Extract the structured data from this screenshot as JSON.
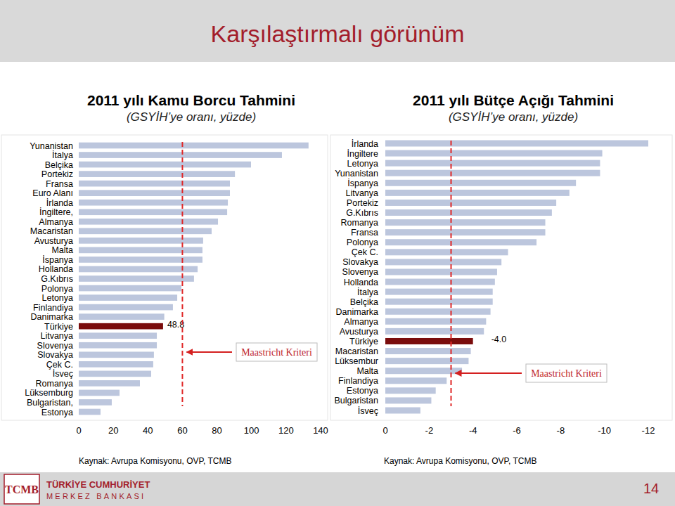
{
  "slide": {
    "title": "Karşılaştırmalı görünüm",
    "logo_text": "TCMB",
    "bank_line1": "TÜRKİYE CUMHURİYET",
    "bank_line2": "MERKEZ BANKASI",
    "page": 14
  },
  "chart_data": [
    {
      "type": "bar",
      "orientation": "horizontal",
      "grid": false,
      "title": "2011 yılı Kamu Borcu Tahmini",
      "subtitle": "(GSYİH’ye oranı, yüzde)",
      "source": "Kaynak: Avrupa Komisyonu, OVP, TCMB",
      "categories": [
        "Yunanistan",
        "İtalya",
        "Belçika",
        "Portekiz",
        "Fransa",
        "Euro Alanı",
        "İrlanda",
        "İngiltere,",
        "Almanya",
        "Macaristan",
        "Avusturya",
        "Malta",
        "İspanya",
        "Hollanda",
        "G.Kıbrıs",
        "Polonya",
        "Letonya",
        "Finlandiya",
        "Danimarka",
        "Türkiye",
        "Litvanya",
        "Slovenya",
        "Slovakya",
        "Çek C.",
        "İsveç",
        "Romanya",
        "Lüksemburg",
        "Bulgaristan,",
        "Estonya"
      ],
      "values": [
        133,
        117.6,
        99.7,
        90.4,
        87.5,
        87.5,
        86.3,
        85.9,
        80.6,
        76.9,
        72,
        71.6,
        71.6,
        68.8,
        66.7,
        59.4,
        57,
        54.5,
        49.5,
        48.8,
        45.2,
        45.2,
        43.5,
        43.1,
        41.9,
        35.4,
        23.6,
        19.1,
        12.6
      ],
      "value_labels": [
        null,
        null,
        null,
        null,
        null,
        null,
        null,
        null,
        null,
        null,
        null,
        null,
        null,
        null,
        null,
        null,
        null,
        null,
        null,
        "48.8",
        null,
        null,
        null,
        null,
        null,
        null,
        null,
        null,
        null
      ],
      "colors": [
        "#bcc6dd",
        "#bcc6dd",
        "#bcc6dd",
        "#bcc6dd",
        "#bcc6dd",
        "#bcc6dd",
        "#bcc6dd",
        "#bcc6dd",
        "#bcc6dd",
        "#bcc6dd",
        "#bcc6dd",
        "#bcc6dd",
        "#bcc6dd",
        "#bcc6dd",
        "#bcc6dd",
        "#bcc6dd",
        "#bcc6dd",
        "#bcc6dd",
        "#bcc6dd",
        "#7a0c0c",
        "#bcc6dd",
        "#bcc6dd",
        "#bcc6dd",
        "#bcc6dd",
        "#bcc6dd",
        "#bcc6dd",
        "#bcc6dd",
        "#bcc6dd",
        "#bcc6dd"
      ],
      "xlim": [
        0,
        140
      ],
      "xticks": [
        0,
        20,
        40,
        60,
        80,
        100,
        120,
        140
      ],
      "annotations": [
        {
          "text": "Maastricht Kriteri",
          "value": 60
        }
      ]
    },
    {
      "type": "bar",
      "orientation": "horizontal",
      "grid": false,
      "title": "2011 yılı Bütçe Açığı Tahmini",
      "subtitle": "(GSYİH’ye oranı, yüzde)",
      "source": "Kaynak: Avrupa Komisyonu, OVP, TCMB",
      "categories": [
        "İrlanda",
        "İngiltere",
        "Letonya",
        "Yunanistan",
        "İspanya",
        "Litvanya",
        "Portekiz",
        "G.Kıbrıs",
        "Romanya",
        "Fransa",
        "Polonya",
        "Çek C.",
        "Slovakya",
        "Slovenya",
        "Hollanda",
        "İtalya",
        "Belçika",
        "Danimarka",
        "Almanya",
        "Avusturya",
        "Türkiye",
        "Macaristan",
        "Lüksembur",
        "Malta",
        "Finlandiya",
        "Estonya",
        "Bulgaristan",
        "İsveç"
      ],
      "values": [
        -12.0,
        -9.9,
        -9.8,
        -9.8,
        -8.7,
        -8.4,
        -7.8,
        -7.6,
        -7.3,
        -7.3,
        -6.9,
        -5.6,
        -5.3,
        -5.1,
        -5.0,
        -4.9,
        -4.9,
        -4.8,
        -4.6,
        -4.5,
        -4.0,
        -3.9,
        -3.8,
        -3.5,
        -2.8,
        -2.3,
        -2.1,
        -1.6
      ],
      "value_labels": [
        null,
        null,
        null,
        null,
        null,
        null,
        null,
        null,
        null,
        null,
        null,
        null,
        null,
        null,
        null,
        null,
        null,
        null,
        null,
        null,
        "-4.0",
        null,
        null,
        null,
        null,
        null,
        null,
        null
      ],
      "colors": [
        "#bcc6dd",
        "#bcc6dd",
        "#bcc6dd",
        "#bcc6dd",
        "#bcc6dd",
        "#bcc6dd",
        "#bcc6dd",
        "#bcc6dd",
        "#bcc6dd",
        "#bcc6dd",
        "#bcc6dd",
        "#bcc6dd",
        "#bcc6dd",
        "#bcc6dd",
        "#bcc6dd",
        "#bcc6dd",
        "#bcc6dd",
        "#bcc6dd",
        "#bcc6dd",
        "#bcc6dd",
        "#7a0c0c",
        "#bcc6dd",
        "#bcc6dd",
        "#bcc6dd",
        "#bcc6dd",
        "#bcc6dd",
        "#bcc6dd",
        "#bcc6dd"
      ],
      "xlim": [
        0,
        -12
      ],
      "xticks": [
        0,
        -2,
        -4,
        -6,
        -8,
        -10,
        -12
      ],
      "annotations": [
        {
          "text": "Maastricht Kriteri",
          "value": -3
        }
      ]
    }
  ]
}
